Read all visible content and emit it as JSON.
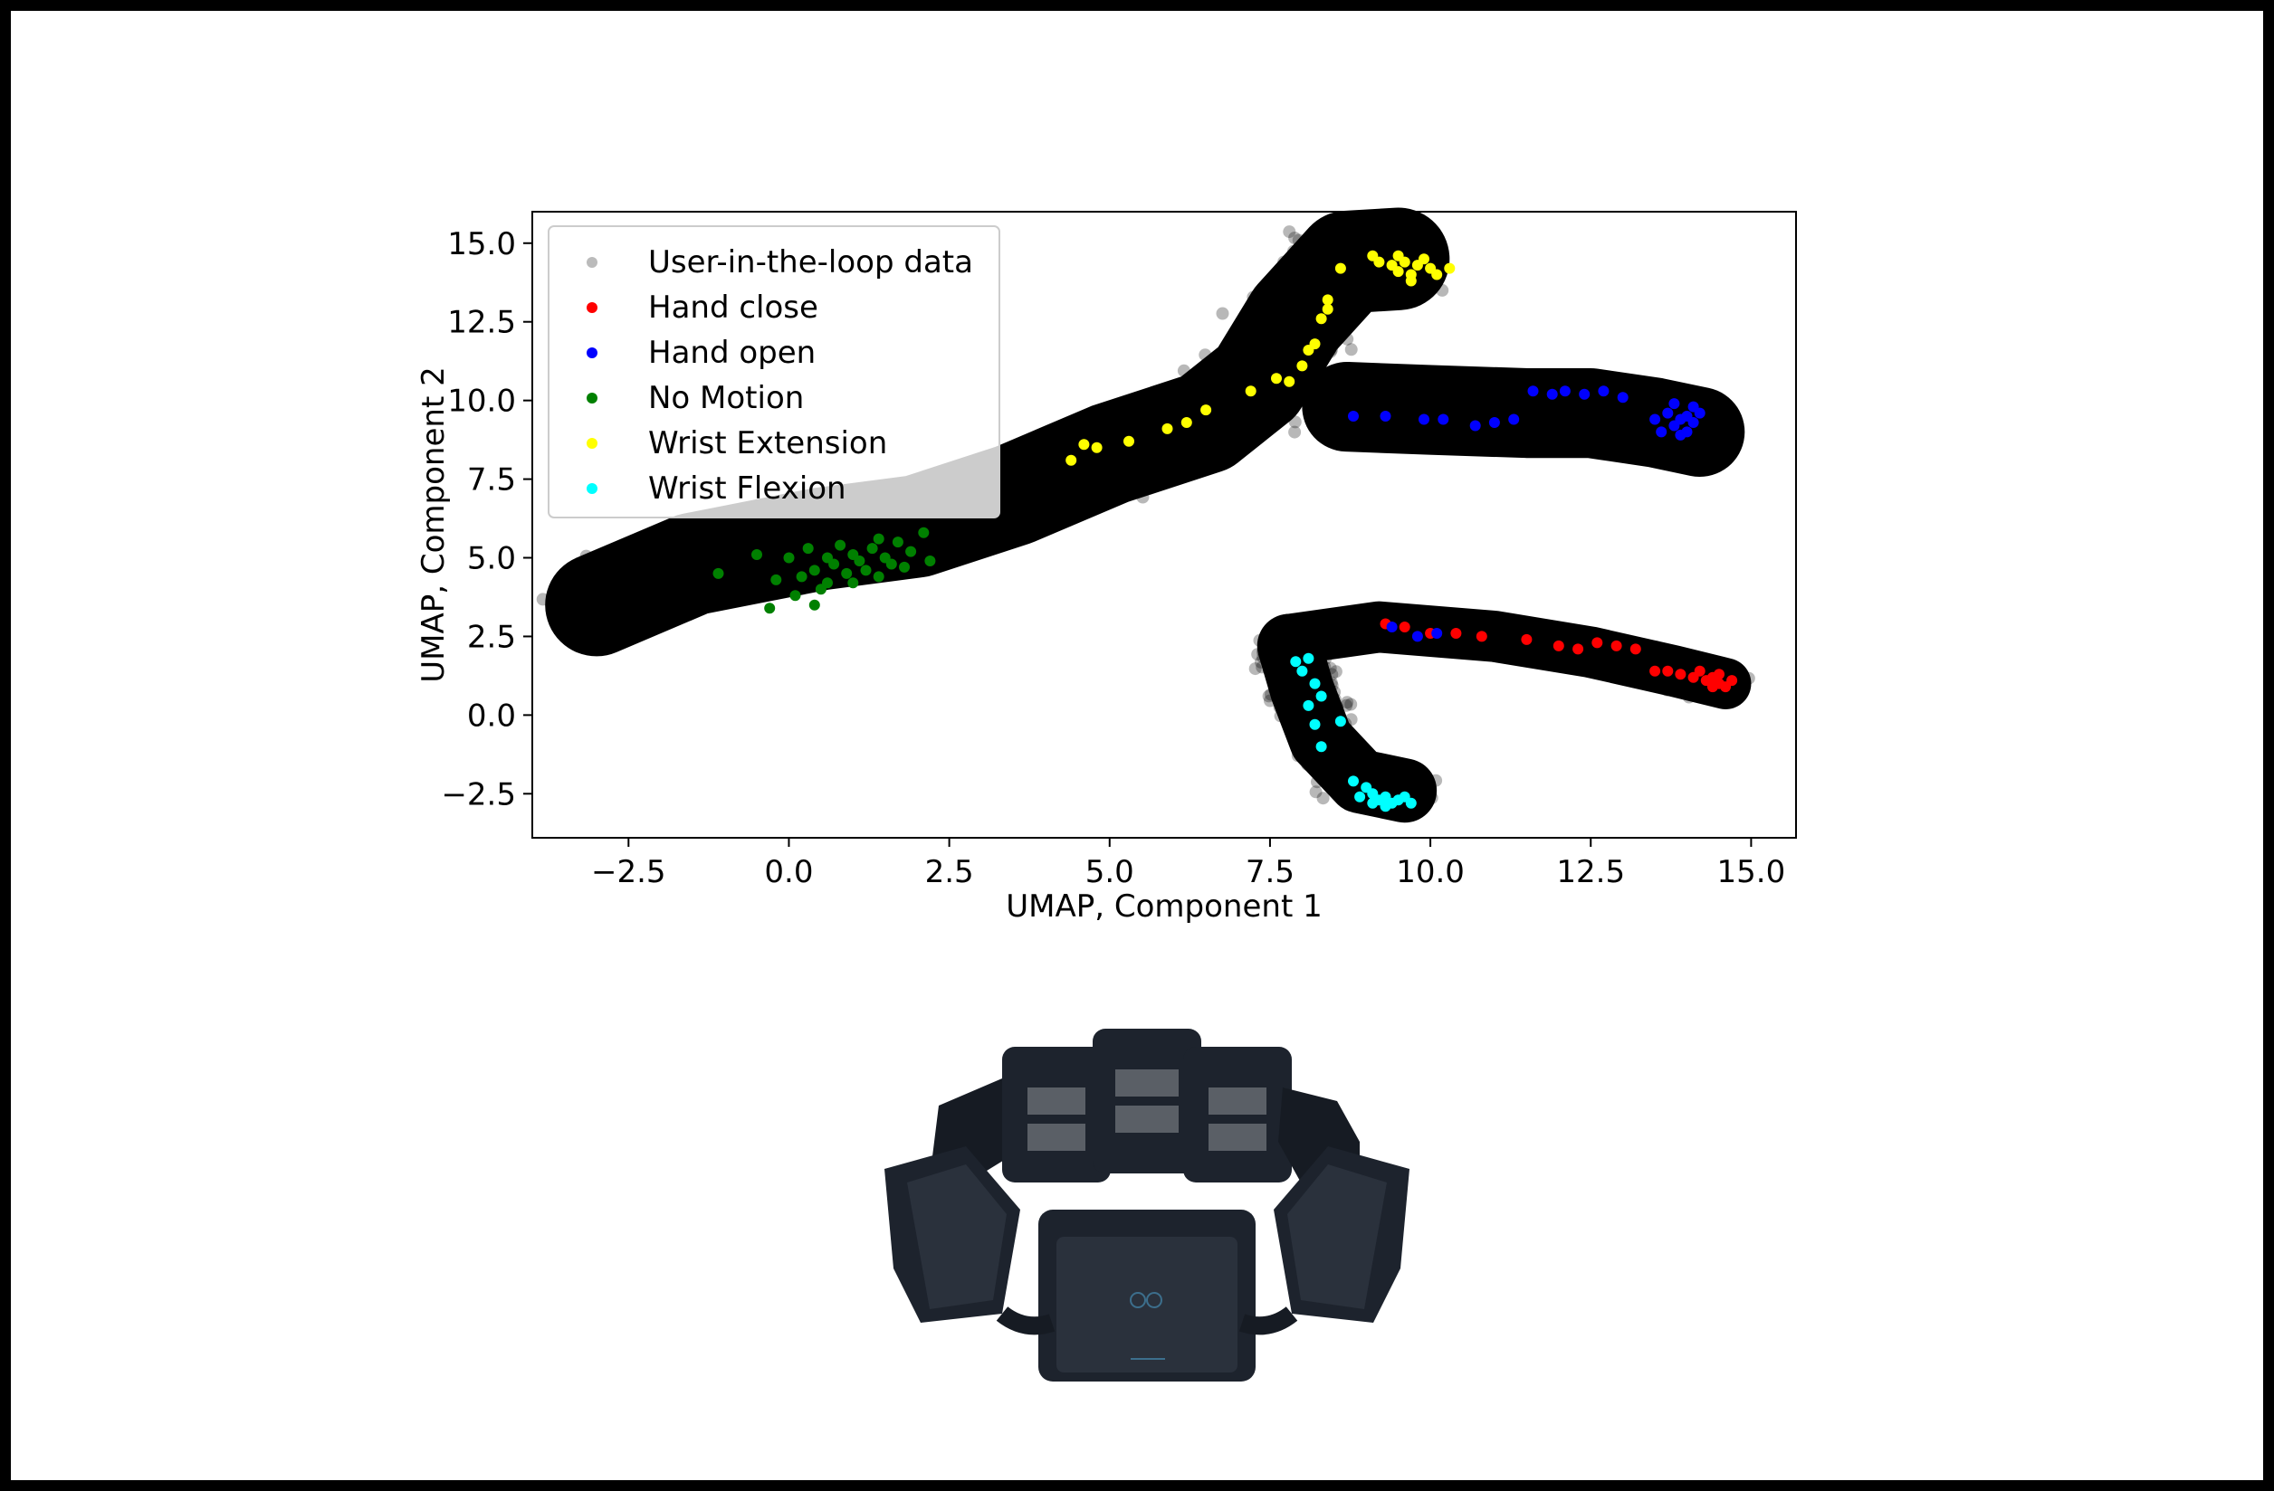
{
  "chart_data": {
    "type": "scatter",
    "xlabel": "UMAP, Component 1",
    "ylabel": "UMAP, Component 2",
    "xlim": [
      -4.0,
      15.7
    ],
    "ylim": [
      -3.9,
      16.0
    ],
    "xticks": [
      -2.5,
      0.0,
      2.5,
      5.0,
      7.5,
      10.0,
      12.5,
      15.0
    ],
    "xtick_labels": [
      "−2.5",
      "0.0",
      "2.5",
      "5.0",
      "7.5",
      "10.0",
      "12.5",
      "15.0"
    ],
    "yticks": [
      -2.5,
      0.0,
      2.5,
      5.0,
      7.5,
      10.0,
      12.5,
      15.0
    ],
    "ytick_labels": [
      "−2.5",
      "0.0",
      "2.5",
      "5.0",
      "7.5",
      "10.0",
      "12.5",
      "15.0"
    ],
    "grid": false,
    "legend_position": "top-left",
    "background_cloud": {
      "name": "User-in-the-loop data",
      "color": "#000000",
      "regions": [
        {
          "path": [
            [
              -3.0,
              3.5
            ],
            [
              -1.5,
              4.8
            ],
            [
              0.5,
              5.6
            ],
            [
              2.0,
              6.0
            ],
            [
              3.5,
              7.0
            ],
            [
              5.0,
              8.3
            ],
            [
              6.5,
              9.3
            ],
            [
              7.3,
              10.6
            ],
            [
              7.9,
              12.6
            ],
            [
              8.7,
              14.4
            ],
            [
              9.5,
              14.5
            ]
          ],
          "width": 1.6
        },
        {
          "path": [
            [
              8.7,
              9.8
            ],
            [
              10.0,
              9.7
            ],
            [
              11.5,
              9.6
            ],
            [
              12.5,
              9.6
            ],
            [
              13.5,
              9.3
            ],
            [
              14.2,
              9.0
            ]
          ],
          "width": 1.4
        },
        {
          "path": [
            [
              7.8,
              2.4
            ],
            [
              9.2,
              2.8
            ],
            [
              11.0,
              2.5
            ],
            [
              12.5,
              2.0
            ],
            [
              13.8,
              1.4
            ],
            [
              14.6,
              1.0
            ]
          ],
          "width": 0.8
        },
        {
          "path": [
            [
              7.8,
              2.2
            ],
            [
              8.0,
              0.8
            ],
            [
              8.3,
              -0.8
            ],
            [
              8.9,
              -2.1
            ],
            [
              9.6,
              -2.4
            ]
          ],
          "width": 1.0
        }
      ]
    },
    "series": [
      {
        "name": "Hand close",
        "color": "#ff0000",
        "points": [
          [
            9.3,
            2.9
          ],
          [
            9.6,
            2.8
          ],
          [
            10.0,
            2.6
          ],
          [
            10.4,
            2.6
          ],
          [
            10.8,
            2.5
          ],
          [
            11.5,
            2.4
          ],
          [
            12.0,
            2.2
          ],
          [
            12.3,
            2.1
          ],
          [
            12.6,
            2.3
          ],
          [
            12.9,
            2.2
          ],
          [
            13.2,
            2.1
          ],
          [
            13.5,
            1.4
          ],
          [
            13.7,
            1.4
          ],
          [
            13.9,
            1.3
          ],
          [
            14.1,
            1.2
          ],
          [
            14.2,
            1.4
          ],
          [
            14.3,
            1.1
          ],
          [
            14.4,
            1.2
          ],
          [
            14.5,
            1.0
          ],
          [
            14.6,
            0.9
          ],
          [
            14.4,
            0.9
          ],
          [
            14.5,
            1.3
          ],
          [
            14.7,
            1.1
          ]
        ]
      },
      {
        "name": "Hand open",
        "color": "#0000ff",
        "points": [
          [
            8.8,
            9.5
          ],
          [
            9.3,
            9.5
          ],
          [
            9.9,
            9.4
          ],
          [
            10.2,
            9.4
          ],
          [
            10.7,
            9.2
          ],
          [
            11.0,
            9.3
          ],
          [
            11.3,
            9.4
          ],
          [
            11.6,
            10.3
          ],
          [
            11.9,
            10.2
          ],
          [
            12.1,
            10.3
          ],
          [
            12.4,
            10.2
          ],
          [
            12.7,
            10.3
          ],
          [
            13.0,
            10.1
          ],
          [
            13.5,
            9.4
          ],
          [
            13.6,
            9.0
          ],
          [
            13.7,
            9.6
          ],
          [
            13.8,
            9.9
          ],
          [
            13.8,
            9.2
          ],
          [
            13.9,
            9.4
          ],
          [
            14.0,
            9.0
          ],
          [
            14.1,
            9.8
          ],
          [
            14.1,
            9.3
          ],
          [
            14.2,
            9.6
          ],
          [
            13.9,
            8.9
          ],
          [
            14.0,
            9.5
          ],
          [
            9.4,
            2.8
          ],
          [
            9.8,
            2.5
          ],
          [
            10.1,
            2.6
          ]
        ]
      },
      {
        "name": "No Motion",
        "color": "#008000",
        "points": [
          [
            -1.1,
            4.5
          ],
          [
            -0.5,
            5.1
          ],
          [
            -0.2,
            4.3
          ],
          [
            0.0,
            5.0
          ],
          [
            0.2,
            4.4
          ],
          [
            0.3,
            5.3
          ],
          [
            0.4,
            4.6
          ],
          [
            0.5,
            4.0
          ],
          [
            0.6,
            5.0
          ],
          [
            0.7,
            4.8
          ],
          [
            0.8,
            5.4
          ],
          [
            0.9,
            4.5
          ],
          [
            1.0,
            5.1
          ],
          [
            1.1,
            4.9
          ],
          [
            1.2,
            4.6
          ],
          [
            1.3,
            5.3
          ],
          [
            1.4,
            4.4
          ],
          [
            1.5,
            5.0
          ],
          [
            1.6,
            4.8
          ],
          [
            1.7,
            5.5
          ],
          [
            1.8,
            4.7
          ],
          [
            1.9,
            5.2
          ],
          [
            2.1,
            5.8
          ],
          [
            2.2,
            4.9
          ],
          [
            0.1,
            3.8
          ],
          [
            0.4,
            3.5
          ],
          [
            -0.3,
            3.4
          ],
          [
            1.0,
            4.2
          ],
          [
            0.6,
            4.2
          ],
          [
            1.4,
            5.6
          ]
        ]
      },
      {
        "name": "Wrist Extension",
        "color": "#ffff00",
        "points": [
          [
            4.4,
            8.1
          ],
          [
            4.6,
            8.6
          ],
          [
            4.8,
            8.5
          ],
          [
            5.3,
            8.7
          ],
          [
            5.9,
            9.1
          ],
          [
            6.2,
            9.3
          ],
          [
            6.5,
            9.7
          ],
          [
            7.2,
            10.3
          ],
          [
            7.6,
            10.7
          ],
          [
            7.8,
            10.6
          ],
          [
            8.0,
            11.1
          ],
          [
            8.2,
            11.8
          ],
          [
            8.3,
            12.6
          ],
          [
            8.4,
            13.2
          ],
          [
            8.6,
            14.2
          ],
          [
            9.1,
            14.6
          ],
          [
            9.2,
            14.4
          ],
          [
            9.4,
            14.3
          ],
          [
            9.5,
            14.1
          ],
          [
            9.6,
            14.4
          ],
          [
            9.7,
            14.0
          ],
          [
            9.8,
            14.3
          ],
          [
            9.9,
            14.5
          ],
          [
            10.0,
            14.2
          ],
          [
            10.1,
            14.0
          ],
          [
            10.3,
            14.2
          ],
          [
            9.7,
            13.8
          ],
          [
            9.5,
            14.6
          ],
          [
            8.4,
            12.9
          ],
          [
            8.1,
            11.6
          ]
        ]
      },
      {
        "name": "Wrist Flexion",
        "color": "#00ffff",
        "points": [
          [
            7.9,
            1.7
          ],
          [
            8.0,
            1.4
          ],
          [
            8.1,
            1.8
          ],
          [
            8.2,
            1.0
          ],
          [
            8.3,
            0.6
          ],
          [
            8.1,
            0.3
          ],
          [
            8.2,
            -0.3
          ],
          [
            8.3,
            -1.0
          ],
          [
            8.6,
            -0.2
          ],
          [
            8.8,
            -2.1
          ],
          [
            9.0,
            -2.3
          ],
          [
            9.1,
            -2.5
          ],
          [
            9.2,
            -2.7
          ],
          [
            9.3,
            -2.6
          ],
          [
            9.4,
            -2.8
          ],
          [
            9.5,
            -2.7
          ],
          [
            9.6,
            -2.6
          ],
          [
            9.7,
            -2.8
          ],
          [
            9.3,
            -2.9
          ],
          [
            9.1,
            -2.8
          ],
          [
            8.9,
            -2.6
          ]
        ]
      }
    ]
  },
  "legend_labels": [
    "User-in-the-loop data",
    "Hand close",
    "Hand open",
    "No Motion",
    "Wrist Extension",
    "Wrist Flexion"
  ],
  "legend_colors": [
    "#bbbbbb",
    "#ff0000",
    "#0000ff",
    "#008000",
    "#ffff00",
    "#00ffff"
  ],
  "device_image": {
    "colors": {
      "body": "#1d232d",
      "pad": "#5a5f66",
      "face": "#2a313c"
    }
  }
}
